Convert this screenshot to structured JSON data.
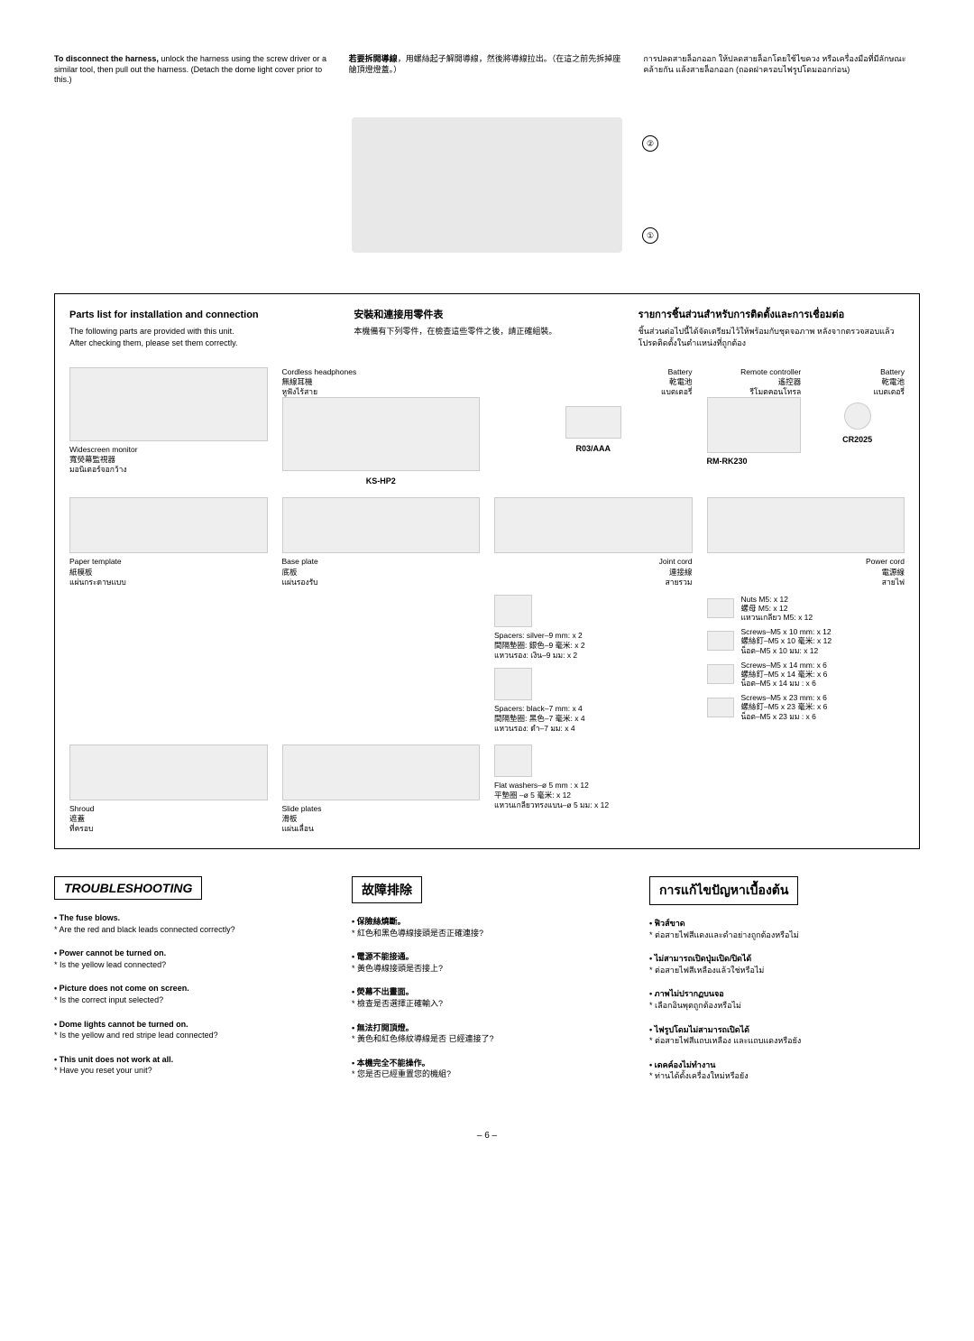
{
  "top": {
    "en": "<b>To disconnect the harness,</b> unlock the harness using the screw driver or a similar tool, then pull out the harness. (Detach the dome light cover prior to this.)",
    "cn": "<b>若要拆開導線</b>，用螺絲起子解開導線，然後將導線拉出。（在這之前先拆掉座艙頂燈燈蓋。）",
    "th": "การปลดสายล็อกออก ให้ปลดสายล็อกโดยใช้ไขควง หรือเครื่องมือที่มีลักษณะคล้ายกัน แล้งสายล็อกออก (ถอดฝาครอบไฟรูปโดมออกก่อน)"
  },
  "partsHeader": {
    "en": {
      "title": "Parts list for installation and connection",
      "body": "The following parts are provided with this unit.\nAfter checking them, please set them correctly."
    },
    "cn": {
      "title": "安裝和連接用零件表",
      "body": "本機備有下列零件，在檢查這些零件之後，請正確組裝。"
    },
    "th": {
      "title": "รายการชิ้นส่วนสำหรับการติดตั้งและการเชื่อมต่อ",
      "body": "ชิ้นส่วนต่อไปนี้ได้จัดเตรียมไว้ให้พร้อมกับชุดจอภาพ หลังจากตรวจสอบแล้ว โปรดติดตั้งในตำแหน่งที่ถูกต้อง"
    }
  },
  "parts": {
    "headphones": {
      "en": "Cordless headphones",
      "cn": "無線耳機",
      "th": "หูฟังไร้สาย",
      "model": "KS-HP2"
    },
    "headphoneBattery": {
      "en": "Battery",
      "cn": "乾電池",
      "th": "แบตเตอรี่",
      "model": "R03/AAA"
    },
    "remote": {
      "en": "Remote controller",
      "cn": "遙控器",
      "th": "รีโมตคอนโทรล",
      "model": "RM-RK230"
    },
    "remoteBattery": {
      "en": "Battery",
      "cn": "乾電池",
      "th": "แบตเตอรี่",
      "model": "CR2025"
    },
    "monitor": {
      "en": "Widescreen monitor",
      "cn": "寬熒幕監視器",
      "th": "มอนิเตอร์จอกว้าง"
    },
    "jointCord": {
      "en": "Joint cord",
      "cn": "連接線",
      "th": "สายรวม"
    },
    "powerCord": {
      "en": "Power cord",
      "cn": "電源線",
      "th": "สายไฟ"
    },
    "template": {
      "en": "Paper template",
      "cn": "紙模板",
      "th": "แผ่นกระดาษแบบ"
    },
    "basePlate": {
      "en": "Base plate",
      "cn": "底板",
      "th": "แผ่นรองรับ"
    },
    "spacersSilver": {
      "en": "Spacers: silver–9 mm: x 2",
      "cn": "間隔墊圈: 銀色–9 毫米: x 2",
      "th": "แหวนรอง: เงิน–9 มม: x 2"
    },
    "spacersBlack": {
      "en": "Spacers: black–7 mm: x 4",
      "cn": "間隔墊圈: 黑色–7 毫米: x 4",
      "th": "แหวนรอง: ดำ–7 มม: x 4"
    },
    "nuts": {
      "en": "Nuts M5: x 12",
      "cn": "螺母 M5: x 12",
      "th": "แหวนเกลียว M5: x 12"
    },
    "screws10": {
      "en": "Screws–M5 x 10 mm: x 12",
      "cn": "螺絲釘–M5 x 10 毫米: x 12",
      "th": "น็อต–M5 x 10 มม: x 12"
    },
    "screws14": {
      "en": "Screws–M5 x 14 mm: x 6",
      "cn": "螺絲釘–M5 x 14 毫米: x 6",
      "th": "น็อต–M5 x 14 มม : x 6"
    },
    "screws23": {
      "en": "Screws–M5 x 23 mm: x 6",
      "cn": "螺絲釘–M5 x 23 毫米: x 6",
      "th": "น็อต–M5 x 23 มม : x 6"
    },
    "shroud": {
      "en": "Shroud",
      "cn": "遮蓋",
      "th": "ที่ครอบ"
    },
    "slidePlates": {
      "en": "Slide plates",
      "cn": "滑板",
      "th": "แผ่นเลื่อน"
    },
    "washers": {
      "en": "Flat washers–ø 5 mm : x 12",
      "cn": "平墊圈 –ø 5 毫米: x 12",
      "th": "แหวนเกลียวทรงแบน–ø 5 มม: x 12"
    }
  },
  "troubleshoot": {
    "titles": {
      "en": "TROUBLESHOOTING",
      "cn": "故障排除",
      "th": "การแก้ไขปัญหาเบื้องต้น"
    },
    "items": [
      {
        "en_q": "The fuse blows.",
        "en_a": "Are the red and black leads connected correctly?",
        "cn_q": "保險絲燒斷。",
        "cn_a": "紅色和黑色導線接頭是否正確連接?",
        "th_q": "ฟิวส์ขาด",
        "th_a": "ต่อสายไฟสีแดงและดำอย่างถูกต้องหรือไม่"
      },
      {
        "en_q": "Power cannot be turned on.",
        "en_a": "Is the yellow lead connected?",
        "cn_q": "電源不能接通。",
        "cn_a": "黃色導線接頭是否接上?",
        "th_q": "ไม่สามารถเปิดปุ่มเปิด/ปิดได้",
        "th_a": "ต่อสายไฟสีเหลืองแล้วใช่หรือไม่"
      },
      {
        "en_q": "Picture does not come on screen.",
        "en_a": "Is the correct input selected?",
        "cn_q": "熒幕不出畫面。",
        "cn_a": "檢查是否選擇正確輸入?",
        "th_q": "ภาพไม่ปรากฏบนจอ",
        "th_a": "เลือกอินพุตถูกต้องหรือไม่"
      },
      {
        "en_q": "Dome lights cannot be turned on.",
        "en_a": "Is the yellow and red stripe lead connected?",
        "cn_q": "無法打開頂燈。",
        "cn_a": "黃色和紅色條紋導線是否 已經連接了?",
        "th_q": "ไฟรูปโดมไม่สามารถเปิดได้",
        "th_a": "ต่อสายไฟสีแถบเหลือง และแถบแดงหรือยัง"
      },
      {
        "en_q": "This unit does not work at all.",
        "en_a": "Have you reset your unit?",
        "cn_q": "本機完全不能操作。",
        "cn_a": "您是否已經重置您的機組?",
        "th_q": "เดคค์องไม่ทำงาน",
        "th_a": "ท่านได้ตั้งเครื่องใหม่หรือยัง"
      }
    ]
  },
  "pageNum": "– 6 –"
}
